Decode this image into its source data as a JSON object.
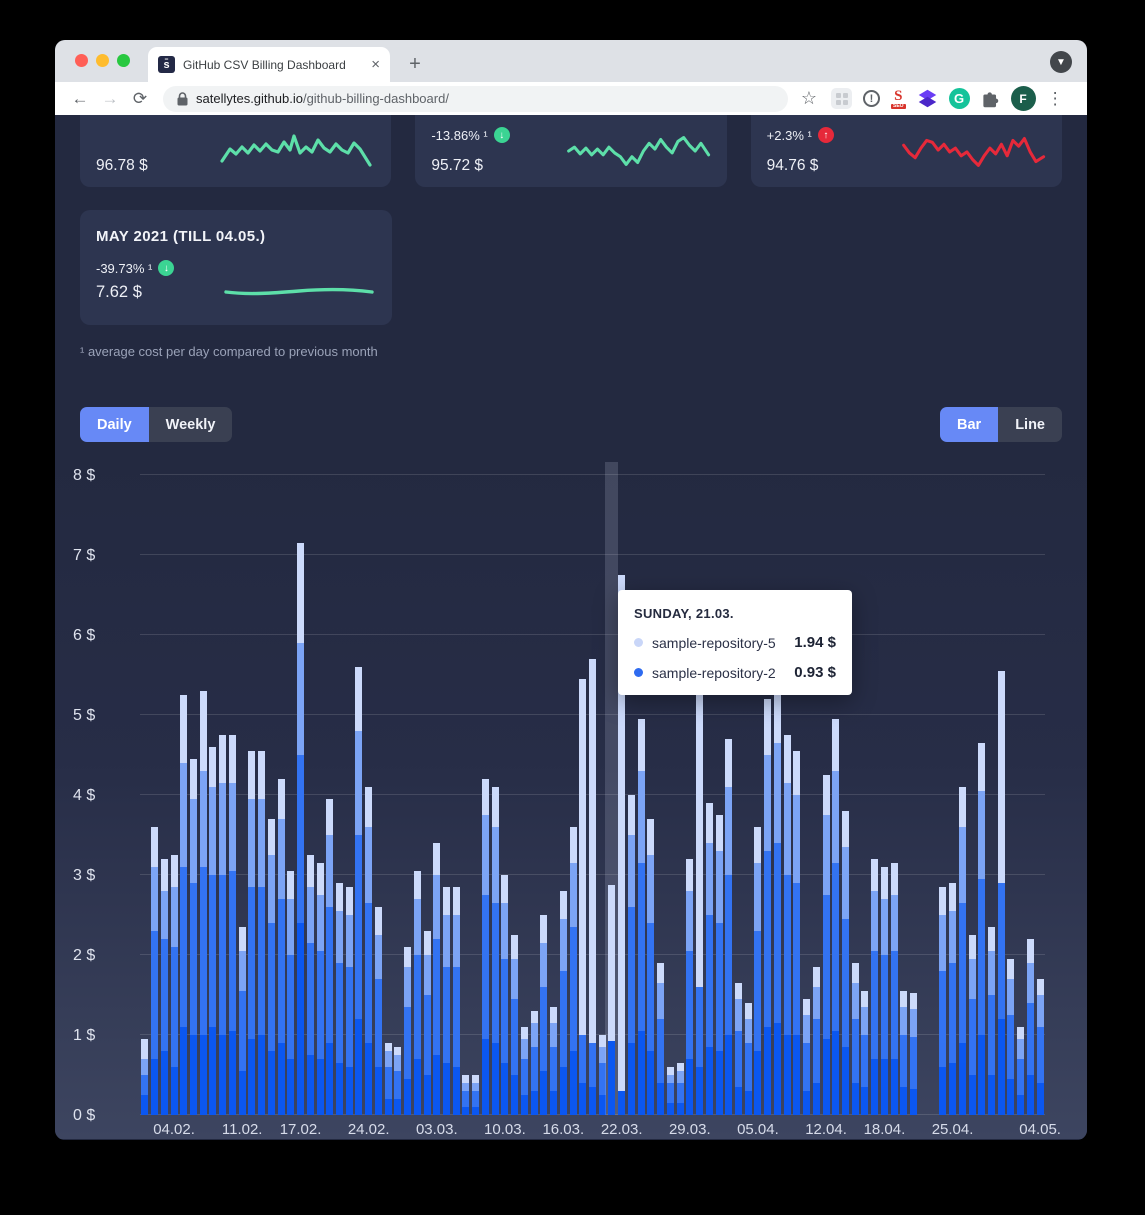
{
  "browser": {
    "tab": {
      "title": "GitHub CSV Billing Dashboard",
      "favicon_letter": "s̄",
      "close_label": "×",
      "new_tab_label": "+"
    },
    "address": {
      "domain": "satellytes.github.io",
      "path": "/github-billing-dashboard/"
    },
    "toolbar": {
      "info_mark": "!",
      "seo_letter": "S",
      "seo_sub": "SEO",
      "grammarly_letter": "G",
      "avatar_letter": "F"
    }
  },
  "cards": {
    "card1": {
      "value": "96.78 $",
      "spark_color": "#5ddfa9"
    },
    "card2": {
      "trend": "-13.86% ¹",
      "value": "95.72 $",
      "spark_color": "#5ddfa9",
      "trend_icon_color": "#3bd493",
      "trend_arrow": "↓"
    },
    "card3": {
      "trend": "+2.3% ¹",
      "value": "94.76 $",
      "spark_color": "#e6293a",
      "trend_icon_color": "#e6293a",
      "trend_arrow": "↑"
    },
    "month": {
      "title": "MAY 2021 (TILL 04.05.)",
      "trend": "-39.73% ¹",
      "value": "7.62 $",
      "spark_color": "#5ddfa9",
      "trend_icon_color": "#3bd493",
      "trend_arrow": "↓"
    }
  },
  "footnote": "¹ average cost per day compared to previous month",
  "controls": {
    "daily": "Daily",
    "weekly": "Weekly",
    "bar": "Bar",
    "line": "Line",
    "active_color": "#6789f6"
  },
  "tooltip": {
    "title": "SUNDAY, 21.03.",
    "rows": [
      {
        "name": "sample-repository-5",
        "value": "1.94 $",
        "color": "#c9d6f8"
      },
      {
        "name": "sample-repository-2",
        "value": "0.93 $",
        "color": "#2e6bf0"
      }
    ]
  },
  "chart_data": {
    "type": "bar",
    "stacked": true,
    "ylim": [
      0,
      8
    ],
    "y_ticks": [
      "0 $",
      "1 $",
      "2 $",
      "3 $",
      "4 $",
      "5 $",
      "6 $",
      "7 $",
      "8 $"
    ],
    "x_ticks": [
      {
        "label": "04.02.",
        "i": 3
      },
      {
        "label": "11.02.",
        "i": 10
      },
      {
        "label": "17.02.",
        "i": 16
      },
      {
        "label": "24.02.",
        "i": 23
      },
      {
        "label": "03.03.",
        "i": 30
      },
      {
        "label": "10.03.",
        "i": 37
      },
      {
        "label": "16.03.",
        "i": 43
      },
      {
        "label": "22.03.",
        "i": 49
      },
      {
        "label": "29.03.",
        "i": 56
      },
      {
        "label": "05.04.",
        "i": 63
      },
      {
        "label": "12.04.",
        "i": 70
      },
      {
        "label": "18.04.",
        "i": 76
      },
      {
        "label": "25.04.",
        "i": 83
      },
      {
        "label": "04.05.",
        "i": 92
      }
    ],
    "segment_colors": [
      "#0b57f0",
      "#3373f2",
      "#7ca4f5",
      "#ccdafb"
    ],
    "hover_index": 48,
    "hover_date": "SUNDAY, 21.03.",
    "bars": [
      [
        0.25,
        0.25,
        0.2,
        0.25
      ],
      [
        0.7,
        1.6,
        0.8,
        0.5
      ],
      [
        0.8,
        1.4,
        0.6,
        0.4
      ],
      [
        0.6,
        1.5,
        0.75,
        0.4
      ],
      [
        1.1,
        2.0,
        1.3,
        0.85
      ],
      [
        1.0,
        1.9,
        1.05,
        0.5
      ],
      [
        1.0,
        2.1,
        1.2,
        1.0
      ],
      [
        1.1,
        1.9,
        1.1,
        0.5
      ],
      [
        1.0,
        2.0,
        1.15,
        0.6
      ],
      [
        1.05,
        2.0,
        1.1,
        0.6
      ],
      [
        0.55,
        1.0,
        0.5,
        0.3
      ],
      [
        0.95,
        1.9,
        1.1,
        0.6
      ],
      [
        1.0,
        1.85,
        1.1,
        0.6
      ],
      [
        0.8,
        1.6,
        0.85,
        0.45
      ],
      [
        0.9,
        1.8,
        1.0,
        0.5
      ],
      [
        0.7,
        1.3,
        0.7,
        0.35
      ],
      [
        2.4,
        2.1,
        1.4,
        1.25
      ],
      [
        0.75,
        1.4,
        0.7,
        0.4
      ],
      [
        0.7,
        1.35,
        0.7,
        0.4
      ],
      [
        0.9,
        1.7,
        0.9,
        0.45
      ],
      [
        0.65,
        1.25,
        0.65,
        0.35
      ],
      [
        0.6,
        1.25,
        0.65,
        0.35
      ],
      [
        1.2,
        2.3,
        1.3,
        0.8
      ],
      [
        0.9,
        1.75,
        0.95,
        0.5
      ],
      [
        0.6,
        1.1,
        0.55,
        0.35
      ],
      [
        0.2,
        0.4,
        0.2,
        0.1
      ],
      [
        0.2,
        0.35,
        0.2,
        0.1
      ],
      [
        0.45,
        0.9,
        0.5,
        0.25
      ],
      [
        0.7,
        1.3,
        0.7,
        0.35
      ],
      [
        0.5,
        1.0,
        0.5,
        0.3
      ],
      [
        0.75,
        1.45,
        0.8,
        0.4
      ],
      [
        0.65,
        1.2,
        0.65,
        0.35
      ],
      [
        0.6,
        1.25,
        0.65,
        0.35
      ],
      [
        0.1,
        0.2,
        0.1,
        0.1
      ],
      [
        0.1,
        0.2,
        0.1,
        0.1
      ],
      [
        0.95,
        1.8,
        1.0,
        0.45
      ],
      [
        0.9,
        1.75,
        0.95,
        0.5
      ],
      [
        0.65,
        1.3,
        0.7,
        0.35
      ],
      [
        0.5,
        0.95,
        0.5,
        0.3
      ],
      [
        0.25,
        0.45,
        0.25,
        0.15
      ],
      [
        0.3,
        0.55,
        0.3,
        0.15
      ],
      [
        0.55,
        1.05,
        0.55,
        0.35
      ],
      [
        0.3,
        0.55,
        0.3,
        0.2
      ],
      [
        0.6,
        1.2,
        0.65,
        0.35
      ],
      [
        0.8,
        1.55,
        0.8,
        0.45
      ],
      [
        0.4,
        0.6,
        0,
        4.45
      ],
      [
        0.35,
        0.55,
        0,
        4.8
      ],
      [
        0.25,
        0.4,
        0.2,
        0.15
      ],
      [
        0.93,
        0,
        0,
        1.94
      ],
      [
        0.3,
        0,
        0,
        6.45
      ],
      [
        0.9,
        1.7,
        0.9,
        0.5
      ],
      [
        1.05,
        2.1,
        1.15,
        0.65
      ],
      [
        0.8,
        1.6,
        0.85,
        0.45
      ],
      [
        0.4,
        0.8,
        0.45,
        0.25
      ],
      [
        0.15,
        0.25,
        0.1,
        0.1
      ],
      [
        0.15,
        0.25,
        0.15,
        0.1
      ],
      [
        0.7,
        1.35,
        0.75,
        0.4
      ],
      [
        0.6,
        1.0,
        0,
        4.3
      ],
      [
        0.85,
        1.65,
        0.9,
        0.5
      ],
      [
        0.8,
        1.6,
        0.9,
        0.45
      ],
      [
        1.0,
        2.0,
        1.1,
        0.6
      ],
      [
        0.35,
        0.7,
        0.4,
        0.2
      ],
      [
        0.3,
        0.6,
        0.3,
        0.2
      ],
      [
        0.8,
        1.5,
        0.85,
        0.45
      ],
      [
        1.1,
        2.2,
        1.2,
        0.7
      ],
      [
        1.15,
        2.25,
        1.25,
        0.7
      ],
      [
        1.0,
        2.0,
        1.15,
        0.6
      ],
      [
        1.0,
        1.9,
        1.1,
        0.55
      ],
      [
        0.3,
        0.6,
        0.35,
        0.2
      ],
      [
        0.4,
        0.8,
        0.4,
        0.25
      ],
      [
        0.95,
        1.8,
        1.0,
        0.5
      ],
      [
        1.05,
        2.1,
        1.15,
        0.65
      ],
      [
        0.85,
        1.6,
        0.9,
        0.45
      ],
      [
        0.4,
        0.8,
        0.45,
        0.25
      ],
      [
        0.35,
        0.65,
        0.35,
        0.2
      ],
      [
        0.7,
        1.35,
        0.75,
        0.4
      ],
      [
        0.7,
        1.3,
        0.7,
        0.4
      ],
      [
        0.7,
        1.35,
        0.7,
        0.4
      ],
      [
        0.35,
        0.65,
        0.35,
        0.2
      ],
      [
        0.32,
        0.65,
        0.35,
        0.2
      ],
      [
        0,
        0,
        0,
        0
      ],
      [
        0,
        0,
        0,
        0
      ],
      [
        0.6,
        1.2,
        0.7,
        0.35
      ],
      [
        0.65,
        1.25,
        0.65,
        0.35
      ],
      [
        0.9,
        1.75,
        0.95,
        0.5
      ],
      [
        0.5,
        0.95,
        0.5,
        0.3
      ],
      [
        1.0,
        1.95,
        1.1,
        0.6
      ],
      [
        0.5,
        1.0,
        0.55,
        0.3
      ],
      [
        1.2,
        1.7,
        0,
        2.65
      ],
      [
        0.45,
        0.8,
        0.45,
        0.25
      ],
      [
        0.25,
        0.45,
        0.25,
        0.15
      ],
      [
        0.5,
        0.9,
        0.5,
        0.3
      ],
      [
        0.4,
        0.7,
        0.4,
        0.2
      ]
    ]
  }
}
